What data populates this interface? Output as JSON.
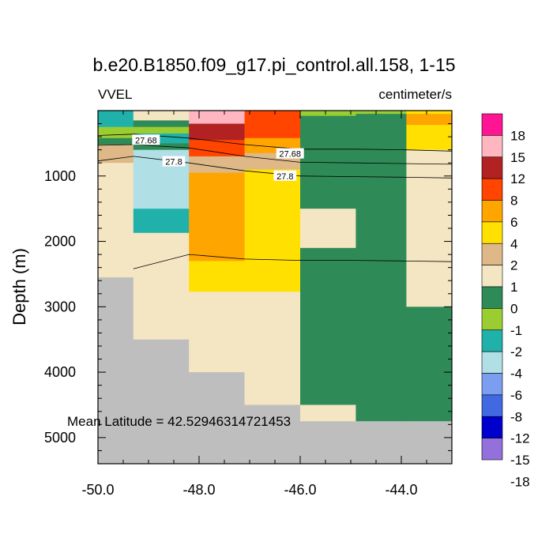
{
  "chart_data": {
    "type": "heatmap",
    "title": "b.e20.B1850.f09_g17.pi_control.all.158, 1-15",
    "left_label": "VVEL",
    "right_label": "centimeter/s",
    "xlabel": "",
    "ylabel": "Depth (m)",
    "xlim": [
      -50.0,
      -43.0
    ],
    "ylim": [
      5400,
      0
    ],
    "x_ticks": [
      -50.0,
      -48.0,
      -46.0,
      -44.0
    ],
    "x_tick_labels": [
      "-50.0",
      "-48.0",
      "-46.0",
      "-44.0"
    ],
    "y_ticks": [
      1000,
      2000,
      3000,
      4000,
      5000
    ],
    "y_tick_labels": [
      "1000",
      "2000",
      "3000",
      "4000",
      "5000"
    ],
    "annotation": "Mean Latitude = 42.52946314721453",
    "missing_color": "#bebebe",
    "colorbar": {
      "labels": [
        "18",
        "15",
        "12",
        "8",
        "6",
        "4",
        "2",
        "1",
        "0",
        "-1",
        "-2",
        "-4",
        "-6",
        "-8",
        "-12",
        "-15",
        "-18"
      ],
      "colors": [
        "#ff1493",
        "#ffb6c1",
        "#b22222",
        "#ff4500",
        "#ffa500",
        "#ffe000",
        "#deb887",
        "#f5e6c3",
        "#2e8b57",
        "#9acd32",
        "#20b2aa",
        "#b0dfe5",
        "#7b9ef0",
        "#4169e1",
        "#0000cd",
        "#9370db"
      ]
    },
    "columns": [
      {
        "x": [
          -50.0,
          -49.3
        ],
        "cells": [
          [
            0,
            250,
            "-4"
          ],
          [
            250,
            420,
            "-2"
          ],
          [
            420,
            520,
            "-1"
          ],
          [
            520,
            800,
            "1"
          ],
          [
            800,
            2550,
            "0"
          ],
          [
            2550,
            5400,
            "missing"
          ]
        ]
      },
      {
        "x": [
          -49.3,
          -48.2
        ],
        "cells": [
          [
            0,
            150,
            "0"
          ],
          [
            150,
            250,
            "-1"
          ],
          [
            250,
            350,
            "-2"
          ],
          [
            350,
            500,
            "-4"
          ],
          [
            500,
            600,
            "-1"
          ],
          [
            600,
            1500,
            "-6"
          ],
          [
            1500,
            1870,
            "-4"
          ],
          [
            1870,
            3500,
            "0"
          ],
          [
            3500,
            5400,
            "missing"
          ]
        ]
      },
      {
        "x": [
          -48.2,
          -47.1
        ],
        "cells": [
          [
            0,
            200,
            "12"
          ],
          [
            200,
            450,
            "8"
          ],
          [
            450,
            700,
            "6"
          ],
          [
            700,
            950,
            "1"
          ],
          [
            950,
            2300,
            "4"
          ],
          [
            2300,
            2770,
            "2"
          ],
          [
            2770,
            4000,
            "0"
          ],
          [
            4000,
            5400,
            "missing"
          ]
        ]
      },
      {
        "x": [
          -47.1,
          -46.0
        ],
        "cells": [
          [
            0,
            420,
            "6"
          ],
          [
            420,
            650,
            "4"
          ],
          [
            650,
            900,
            "1"
          ],
          [
            900,
            2770,
            "2"
          ],
          [
            2770,
            4500,
            "0"
          ],
          [
            4500,
            5400,
            "missing"
          ]
        ]
      },
      {
        "x": [
          -46.0,
          -44.9
        ],
        "cells": [
          [
            0,
            80,
            "-2"
          ],
          [
            80,
            1500,
            "-1"
          ],
          [
            1500,
            2100,
            "0"
          ],
          [
            2100,
            4500,
            "-1"
          ],
          [
            4500,
            4750,
            "0"
          ],
          [
            4750,
            5400,
            "missing"
          ]
        ]
      },
      {
        "x": [
          -44.9,
          -43.9
        ],
        "cells": [
          [
            0,
            50,
            "-2"
          ],
          [
            50,
            4750,
            "-1"
          ],
          [
            4750,
            5400,
            "missing"
          ]
        ]
      },
      {
        "x": [
          -43.9,
          -43.0
        ],
        "cells": [
          [
            0,
            50,
            "2"
          ],
          [
            50,
            220,
            "4"
          ],
          [
            220,
            600,
            "2"
          ],
          [
            600,
            3000,
            "0"
          ],
          [
            3000,
            4750,
            "-1"
          ],
          [
            4750,
            5400,
            "missing"
          ]
        ]
      }
    ],
    "contours": [
      {
        "level": "27.68",
        "points": [
          [
            -50.0,
            380
          ],
          [
            -49.3,
            360
          ],
          [
            -48.2,
            420
          ],
          [
            -47.1,
            520
          ],
          [
            -46.0,
            590
          ],
          [
            -44.9,
            590
          ],
          [
            -43.9,
            600
          ],
          [
            -43.0,
            620
          ]
        ]
      },
      {
        "level": "27.68",
        "points": [
          [
            -50.0,
            530
          ],
          [
            -49.3,
            520
          ],
          [
            -48.2,
            570
          ],
          [
            -47.1,
            700
          ],
          [
            -46.0,
            790
          ],
          [
            -44.9,
            800
          ],
          [
            -43.9,
            810
          ],
          [
            -43.0,
            820
          ]
        ]
      },
      {
        "level": "27.8",
        "points": [
          [
            -50.0,
            770
          ],
          [
            -49.3,
            700
          ],
          [
            -48.2,
            800
          ],
          [
            -47.1,
            920
          ],
          [
            -46.0,
            1000
          ],
          [
            -44.9,
            1010
          ],
          [
            -43.9,
            1020
          ],
          [
            -43.0,
            1030
          ]
        ]
      },
      {
        "level": "",
        "points": [
          [
            -49.3,
            2420
          ],
          [
            -48.2,
            2200
          ],
          [
            -47.1,
            2270
          ],
          [
            -46.0,
            2290
          ],
          [
            -44.9,
            2290
          ],
          [
            -43.9,
            2300
          ],
          [
            -43.0,
            2310
          ]
        ]
      }
    ],
    "contour_labels": [
      {
        "text": "27.68",
        "x": -49.05,
        "y": 450
      },
      {
        "text": "27.68",
        "x": -46.2,
        "y": 660
      },
      {
        "text": "27.8",
        "x": -48.5,
        "y": 780
      },
      {
        "text": "27.8",
        "x": -46.3,
        "y": 1000
      }
    ]
  }
}
